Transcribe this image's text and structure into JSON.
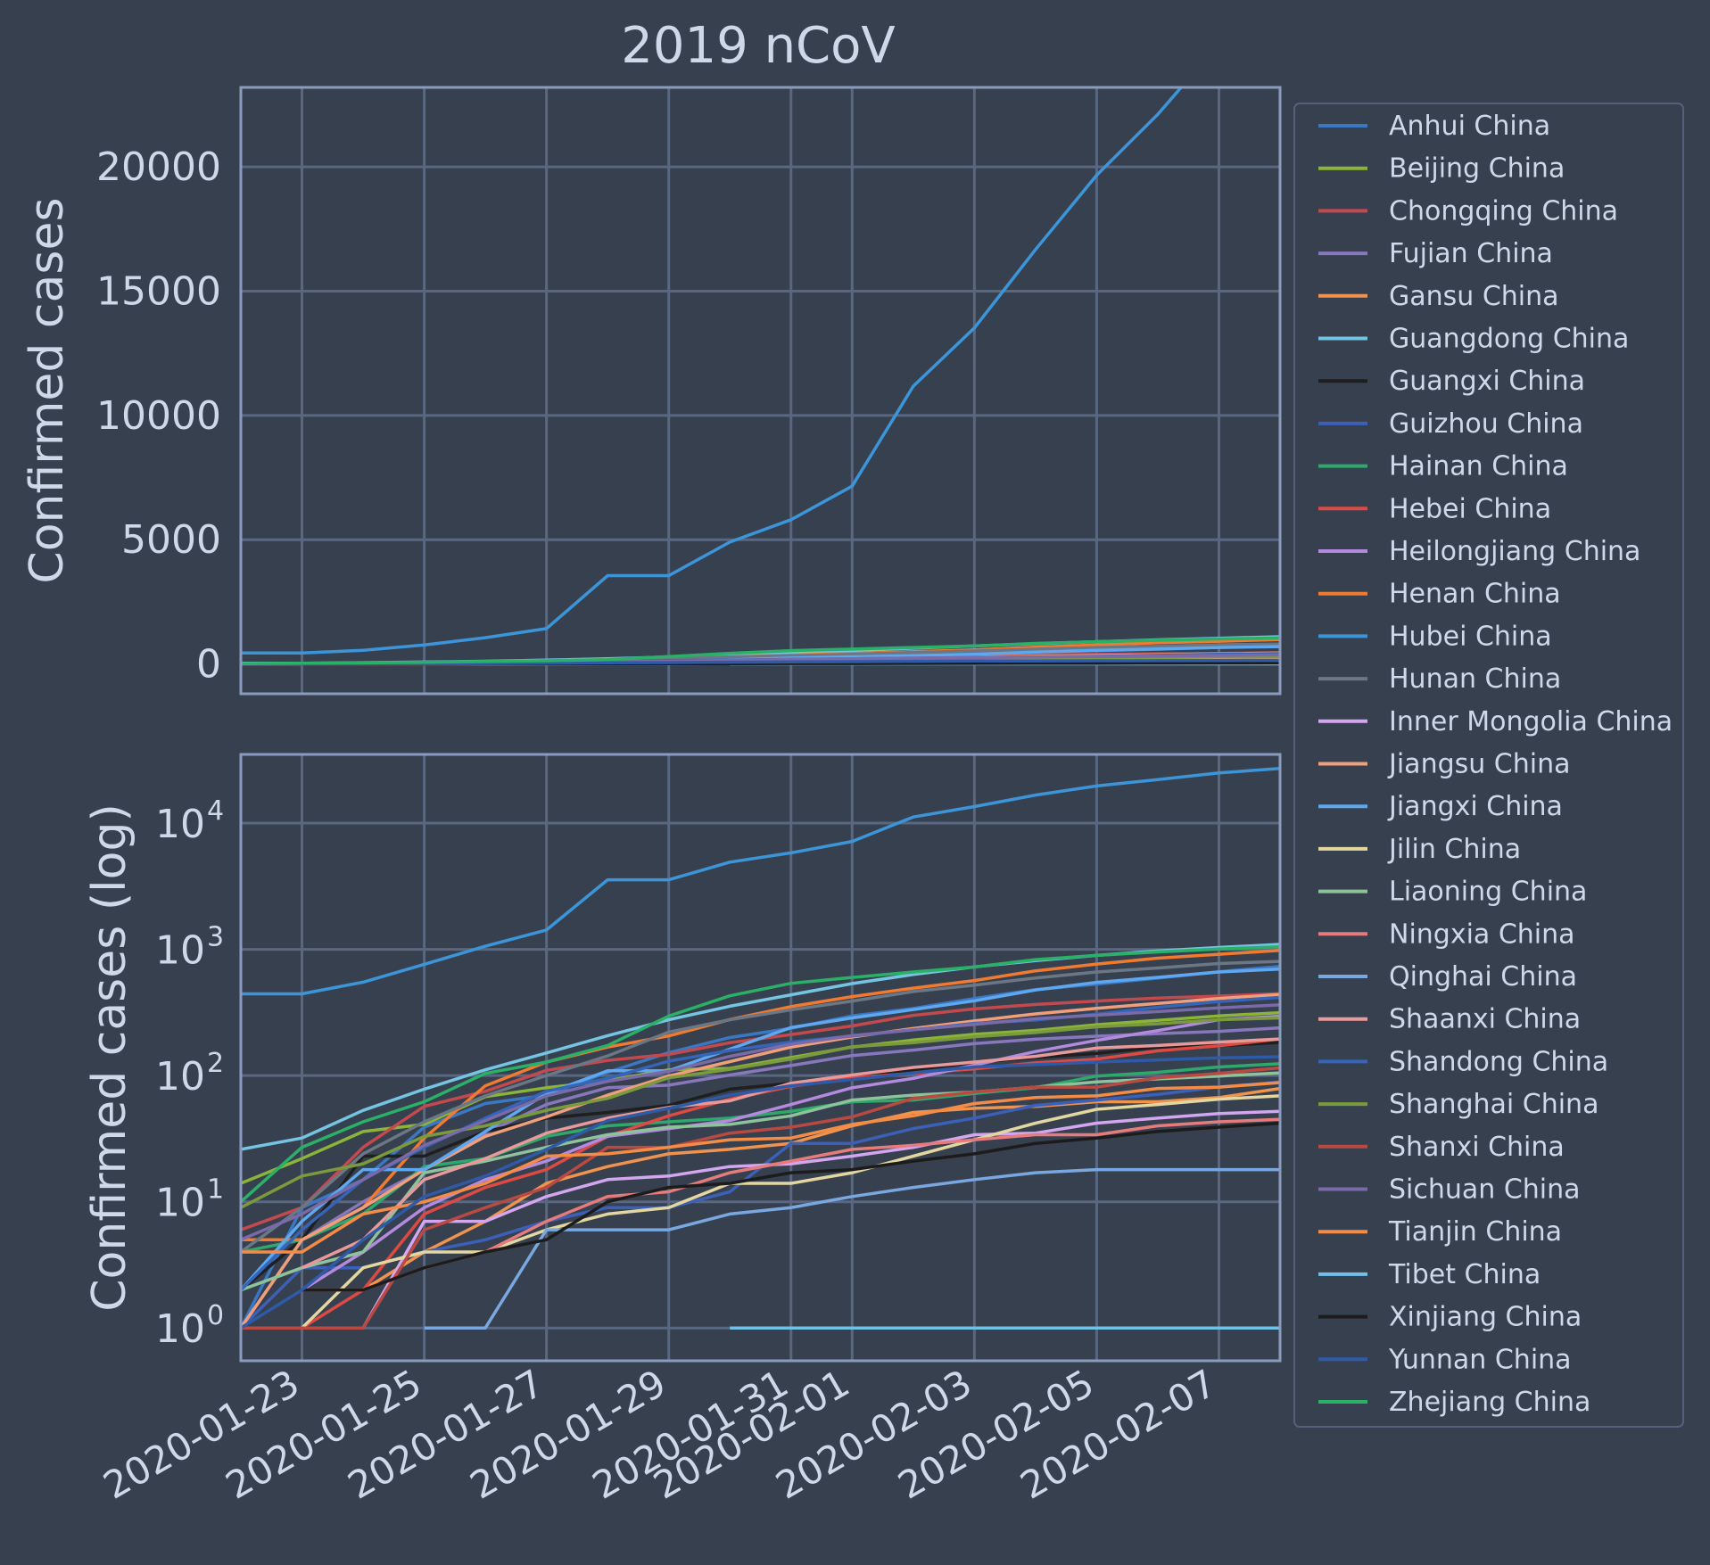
{
  "chart_data": {
    "type": "line",
    "title": "2019 nCoV",
    "xlabel": "",
    "x_range": [
      "2020-01-22",
      "2020-02-08"
    ],
    "x_ticks": [
      "2020-01-23",
      "2020-01-25",
      "2020-01-27",
      "2020-01-29",
      "2020-01-31",
      "2020-02-01",
      "2020-02-03",
      "2020-02-05",
      "2020-02-07"
    ],
    "background_color": "#37404f",
    "grid": true,
    "legend_position": "right",
    "panels": [
      {
        "name": "linear",
        "ylabel": "Confirmed cases",
        "yscale": "linear",
        "ylim": [
          -1200,
          23200
        ],
        "y_ticks": [
          0,
          5000,
          10000,
          15000,
          20000
        ],
        "y_tick_labels": [
          "0",
          "5000",
          "10000",
          "15000",
          "20000"
        ]
      },
      {
        "name": "log",
        "ylabel": "Confirmed cases (log)",
        "yscale": "log",
        "ylim": [
          0.55,
          35000
        ],
        "y_ticks": [
          1,
          10,
          100,
          1000,
          10000
        ],
        "y_tick_labels": [
          {
            "base": "10",
            "exp": "0"
          },
          {
            "base": "10",
            "exp": "1"
          },
          {
            "base": "10",
            "exp": "2"
          },
          {
            "base": "10",
            "exp": "3"
          },
          {
            "base": "10",
            "exp": "4"
          }
        ]
      }
    ],
    "x": [
      "2020-01-22",
      "2020-01-23",
      "2020-01-24",
      "2020-01-25",
      "2020-01-26",
      "2020-01-27",
      "2020-01-28",
      "2020-01-29",
      "2020-01-30",
      "2020-01-31",
      "2020-02-01",
      "2020-02-02",
      "2020-02-03",
      "2020-02-04",
      "2020-02-05",
      "2020-02-06",
      "2020-02-07",
      "2020-02-08"
    ],
    "series": [
      {
        "name": "Anhui China",
        "color": "#3b78c3",
        "values": [
          1,
          9,
          15,
          39,
          60,
          70,
          106,
          152,
          200,
          237,
          297,
          340,
          408,
          480,
          530,
          591,
          665,
          733
        ]
      },
      {
        "name": "Beijing China",
        "color": "#8bb439",
        "values": [
          14,
          22,
          36,
          41,
          68,
          80,
          91,
          111,
          114,
          139,
          168,
          191,
          212,
          228,
          253,
          274,
          297,
          315
        ]
      },
      {
        "name": "Chongqing China",
        "color": "#c24a4f",
        "values": [
          6,
          9,
          27,
          57,
          75,
          110,
          132,
          147,
          182,
          211,
          247,
          300,
          337,
          366,
          389,
          411,
          426,
          446
        ]
      },
      {
        "name": "Fujian China",
        "color": "#8877bb",
        "values": [
          1,
          5,
          10,
          18,
          35,
          59,
          80,
          84,
          101,
          120,
          144,
          159,
          179,
          194,
          205,
          215,
          224,
          239
        ]
      },
      {
        "name": "Gansu China",
        "color": "#f0934e",
        "values": [
          null,
          2,
          2,
          4,
          7,
          14,
          19,
          24,
          26,
          29,
          40,
          51,
          55,
          57,
          62,
          62,
          67,
          79
        ]
      },
      {
        "name": "Guangdong China",
        "color": "#74c4e2",
        "values": [
          26,
          32,
          53,
          78,
          111,
          151,
          207,
          277,
          354,
          436,
          535,
          632,
          725,
          813,
          895,
          970,
          1034,
          1095
        ]
      },
      {
        "name": "Guangxi China",
        "color": "#1f1f1f",
        "values": [
          2,
          5,
          23,
          23,
          36,
          46,
          51,
          58,
          78,
          87,
          100,
          111,
          127,
          139,
          150,
          168,
          172,
          183
        ]
      },
      {
        "name": "Guizhou China",
        "color": "#3c5fb8",
        "values": [
          1,
          3,
          3,
          4,
          5,
          7,
          9,
          9,
          12,
          29,
          29,
          38,
          46,
          58,
          64,
          71,
          81,
          89
        ]
      },
      {
        "name": "Hainan China",
        "color": "#2ea86b",
        "values": [
          4,
          5,
          8,
          19,
          22,
          33,
          40,
          43,
          46,
          52,
          62,
          64,
          72,
          80,
          99,
          106,
          117,
          124
        ]
      },
      {
        "name": "Hebei China",
        "color": "#dd4a43",
        "values": [
          1,
          1,
          2,
          8,
          13,
          18,
          33,
          48,
          65,
          82,
          96,
          104,
          113,
          126,
          135,
          157,
          172,
          195
        ]
      },
      {
        "name": "Heilongjiang China",
        "color": "#b48adf",
        "values": [
          null,
          2,
          4,
          9,
          15,
          21,
          33,
          38,
          44,
          59,
          80,
          95,
          121,
          155,
          190,
          227,
          277,
          295
        ]
      },
      {
        "name": "Henan China",
        "color": "#f07a30",
        "values": [
          5,
          5,
          9,
          32,
          83,
          128,
          168,
          206,
          278,
          352,
          422,
          493,
          566,
          675,
          764,
          851,
          914,
          981
        ]
      },
      {
        "name": "Hubei China",
        "color": "#3c95d8",
        "values": [
          444,
          444,
          549,
          761,
          1058,
          1423,
          3554,
          3554,
          4903,
          5806,
          7153,
          11177,
          13522,
          16678,
          19665,
          22112,
          24953,
          27100
        ]
      },
      {
        "name": "Hunan China",
        "color": "#6b7784",
        "values": [
          4,
          9,
          24,
          43,
          69,
          100,
          143,
          221,
          277,
          332,
          389,
          463,
          521,
          593,
          661,
          711,
          772,
          803
        ]
      },
      {
        "name": "Inner Mongolia China",
        "color": "#d3a6ef",
        "values": [
          null,
          null,
          1,
          7,
          7,
          11,
          15,
          16,
          19,
          20,
          23,
          27,
          34,
          35,
          42,
          46,
          50,
          52
        ]
      },
      {
        "name": "Jiangsu China",
        "color": "#ef9f7b",
        "values": [
          1,
          5,
          9,
          18,
          33,
          47,
          70,
          99,
          129,
          168,
          202,
          236,
          271,
          308,
          341,
          373,
          408,
          439
        ]
      },
      {
        "name": "Jiangxi China",
        "color": "#5fa8ef",
        "values": [
          2,
          7,
          18,
          18,
          36,
          72,
          109,
          109,
          162,
          240,
          286,
          333,
          391,
          476,
          548,
          600,
          661,
          698
        ]
      },
      {
        "name": "Jilin China",
        "color": "#e2d7a0",
        "values": [
          null,
          1,
          3,
          4,
          4,
          6,
          8,
          9,
          14,
          14,
          17,
          23,
          31,
          42,
          54,
          59,
          65,
          69
        ]
      },
      {
        "name": "Liaoning China",
        "color": "#8dc29a",
        "values": [
          2,
          3,
          4,
          17,
          21,
          27,
          34,
          39,
          41,
          48,
          64,
          70,
          74,
          81,
          89,
          94,
          99,
          105
        ]
      },
      {
        "name": "Ningxia China",
        "color": "#e67b7b",
        "values": [
          null,
          null,
          2,
          3,
          4,
          7,
          11,
          12,
          17,
          21,
          26,
          28,
          31,
          34,
          34,
          40,
          43,
          45
        ]
      },
      {
        "name": "Qinghai China",
        "color": "#79a8e0",
        "values": [
          null,
          null,
          null,
          1,
          1,
          6,
          6,
          6,
          8,
          9,
          11,
          13,
          15,
          17,
          18,
          18,
          18,
          18
        ]
      },
      {
        "name": "Shaanxi China",
        "color": "#e89a9a",
        "values": [
          null,
          3,
          5,
          15,
          22,
          35,
          46,
          56,
          63,
          87,
          101,
          116,
          128,
          142,
          165,
          173,
          184,
          195
        ]
      },
      {
        "name": "Shandong China",
        "color": "#3564b8",
        "values": [
          2,
          6,
          15,
          27,
          46,
          75,
          95,
          130,
          158,
          184,
          206,
          230,
          259,
          275,
          307,
          347,
          386,
          416
        ]
      },
      {
        "name": "Shanghai China",
        "color": "#7a9a3d",
        "values": [
          9,
          16,
          20,
          33,
          40,
          53,
          66,
          96,
          112,
          135,
          169,
          182,
          203,
          219,
          243,
          257,
          277,
          286
        ]
      },
      {
        "name": "Shanxi China",
        "color": "#b84a42",
        "values": [
          1,
          1,
          1,
          6,
          9,
          13,
          27,
          27,
          35,
          39,
          47,
          66,
          74,
          81,
          81,
          96,
          104,
          115
        ]
      },
      {
        "name": "Sichuan China",
        "color": "#7a6aa8",
        "values": [
          5,
          8,
          15,
          28,
          44,
          69,
          90,
          108,
          142,
          177,
          207,
          231,
          254,
          282,
          301,
          321,
          344,
          363
        ]
      },
      {
        "name": "Tianjin China",
        "color": "#f48c45",
        "values": [
          4,
          4,
          8,
          10,
          14,
          23,
          24,
          27,
          31,
          32,
          41,
          48,
          60,
          67,
          69,
          79,
          81,
          88
        ]
      },
      {
        "name": "Tibet China",
        "color": "#6fc1e8",
        "values": [
          null,
          null,
          null,
          null,
          null,
          null,
          null,
          null,
          1,
          1,
          1,
          1,
          1,
          1,
          1,
          1,
          1,
          1
        ]
      },
      {
        "name": "Xinjiang China",
        "color": "#1c1c1c",
        "values": [
          null,
          2,
          2,
          3,
          4,
          5,
          10,
          13,
          14,
          17,
          18,
          21,
          24,
          29,
          32,
          36,
          39,
          42
        ]
      },
      {
        "name": "Yunnan China",
        "color": "#2f5aa8",
        "values": [
          1,
          2,
          5,
          11,
          16,
          26,
          44,
          55,
          70,
          83,
          93,
          105,
          117,
          122,
          128,
          133,
          138,
          141
        ]
      },
      {
        "name": "Zhejiang China",
        "color": "#2bb067",
        "values": [
          10,
          27,
          43,
          62,
          104,
          128,
          173,
          296,
          428,
          538,
          599,
          661,
          724,
          829,
          895,
          954,
          1006,
          1048
        ]
      }
    ]
  }
}
